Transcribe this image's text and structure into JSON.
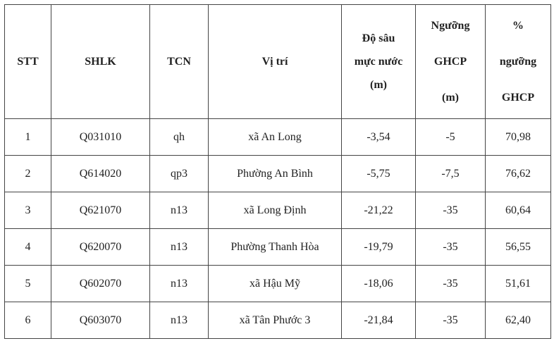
{
  "table": {
    "header": [
      [
        "STT"
      ],
      [
        "SHLK"
      ],
      [
        "TCN"
      ],
      [
        "Vị trí"
      ],
      [
        "Độ sâu",
        "mực nước",
        "(m)"
      ],
      [
        "Ngưỡng",
        "GHCP",
        "(m)"
      ],
      [
        "%",
        "ngưỡng",
        "GHCP"
      ]
    ],
    "rows": [
      [
        "1",
        "Q031010",
        "qh",
        "xã An Long",
        "-3,54",
        "-5",
        "70,98"
      ],
      [
        "2",
        "Q614020",
        "qp3",
        "Phường An Bình",
        "-5,75",
        "-7,5",
        "76,62"
      ],
      [
        "3",
        "Q621070",
        "n13",
        "xã Long Định",
        "-21,22",
        "-35",
        "60,64"
      ],
      [
        "4",
        "Q620070",
        "n13",
        "Phường Thanh Hòa",
        "-19,79",
        "-35",
        "56,55"
      ],
      [
        "5",
        "Q602070",
        "n13",
        "xã Hậu Mỹ",
        "-18,06",
        "-35",
        "51,61"
      ],
      [
        "6",
        "Q603070",
        "n13",
        "xã Tân Phước 3",
        "-21,84",
        "-35",
        "62,40"
      ]
    ]
  }
}
